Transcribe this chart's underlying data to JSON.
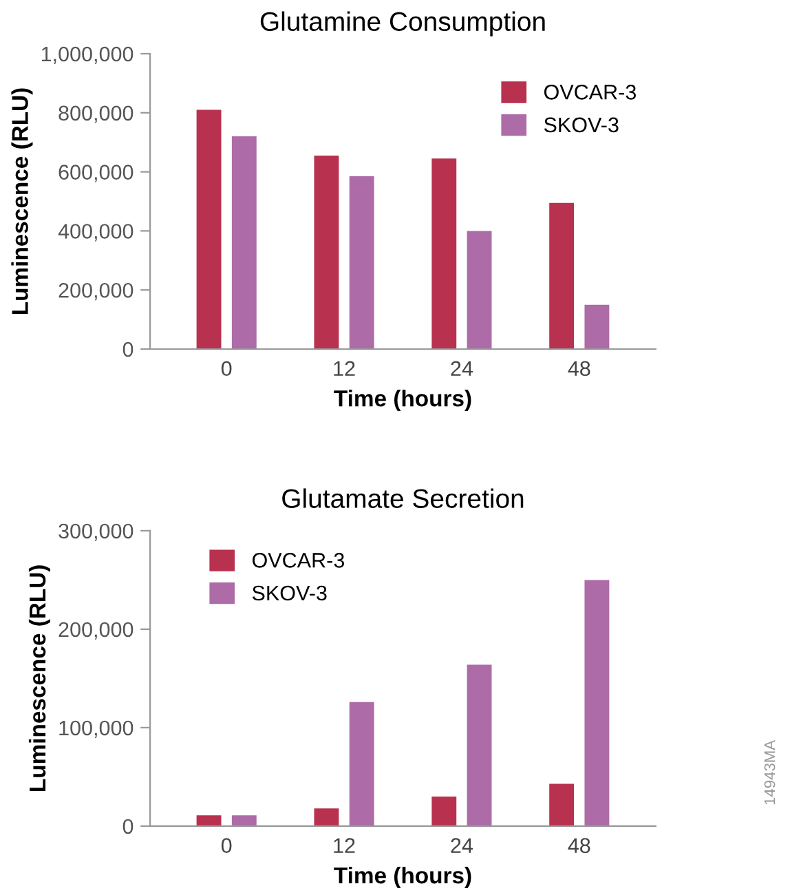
{
  "chart_data": [
    {
      "type": "bar",
      "title": "Glutamine Consumption",
      "xlabel": "Time (hours)",
      "ylabel": "Luminescence (RLU)",
      "categories": [
        "0",
        "12",
        "24",
        "48"
      ],
      "series": [
        {
          "name": "OVCAR-3",
          "color": "#b8314e",
          "values": [
            810000,
            655000,
            645000,
            495000
          ]
        },
        {
          "name": "SKOV-3",
          "color": "#ad6ba8",
          "values": [
            720000,
            585000,
            400000,
            150000
          ]
        }
      ],
      "ylim": [
        0,
        1000000
      ],
      "yticks": [
        0,
        {
          "value": 200000,
          "label": "200,000"
        },
        {
          "value": 400000,
          "label": "400,000"
        },
        {
          "value": 600000,
          "label": "600,000"
        },
        {
          "value": 800000,
          "label": "800,000"
        },
        {
          "value": 1000000,
          "label": "1,000,000"
        }
      ],
      "grid": false,
      "legend": "top right"
    },
    {
      "type": "bar",
      "title": "Glutamate Secretion",
      "xlabel": "Time (hours)",
      "ylabel": "Luminescence (RLU)",
      "categories": [
        "0",
        "12",
        "24",
        "48"
      ],
      "series": [
        {
          "name": "OVCAR-3",
          "color": "#b8314e",
          "values": [
            11000,
            18000,
            30000,
            43000
          ]
        },
        {
          "name": "SKOV-3",
          "color": "#ad6ba8",
          "values": [
            11000,
            126000,
            164000,
            250000
          ]
        }
      ],
      "ylim": [
        0,
        300000
      ],
      "yticks": [
        0,
        {
          "value": 100000,
          "label": "100,000"
        },
        {
          "value": 200000,
          "label": "200,000"
        },
        {
          "value": 300000,
          "label": "300,000"
        }
      ],
      "grid": false,
      "legend": "top left",
      "annotations": [
        "14943MA"
      ]
    }
  ]
}
